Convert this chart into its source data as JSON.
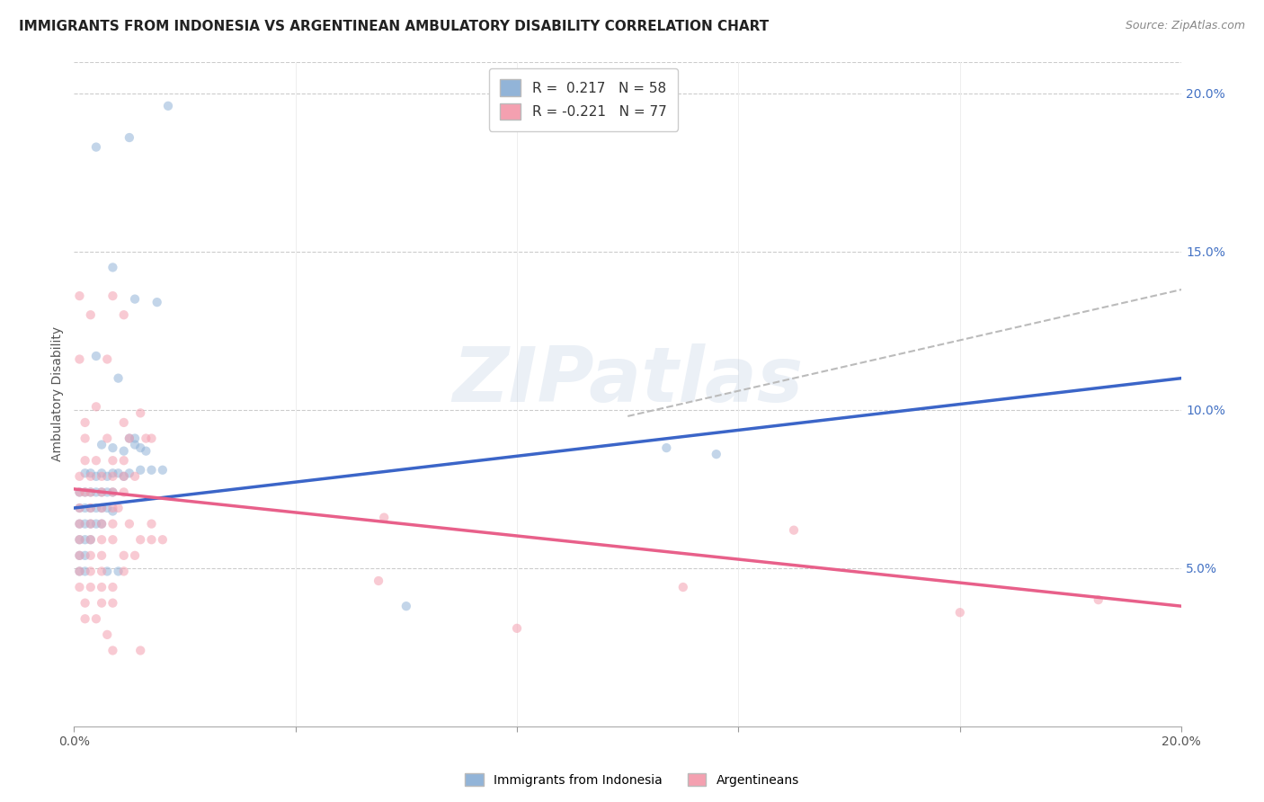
{
  "title": "IMMIGRANTS FROM INDONESIA VS ARGENTINEAN AMBULATORY DISABILITY CORRELATION CHART",
  "source": "Source: ZipAtlas.com",
  "ylabel": "Ambulatory Disability",
  "xlim": [
    0.0,
    0.2
  ],
  "ylim": [
    0.0,
    0.21
  ],
  "x_ticks": [
    0.0,
    0.04,
    0.08,
    0.12,
    0.16,
    0.2
  ],
  "y_ticks_right": [
    0.05,
    0.1,
    0.15,
    0.2
  ],
  "y_tick_labels_right": [
    "5.0%",
    "10.0%",
    "15.0%",
    "20.0%"
  ],
  "blue_color": "#92B4D8",
  "pink_color": "#F4A0B0",
  "blue_line_color": "#3B65C8",
  "pink_line_color": "#E8608A",
  "dashed_line_color": "#BBBBBB",
  "watermark": "ZIPatlas",
  "blue_scatter": [
    [
      0.004,
      0.183
    ],
    [
      0.01,
      0.186
    ],
    [
      0.017,
      0.196
    ],
    [
      0.007,
      0.145
    ],
    [
      0.011,
      0.135
    ],
    [
      0.015,
      0.134
    ],
    [
      0.004,
      0.117
    ],
    [
      0.008,
      0.11
    ],
    [
      0.005,
      0.089
    ],
    [
      0.007,
      0.088
    ],
    [
      0.009,
      0.087
    ],
    [
      0.011,
      0.089
    ],
    [
      0.012,
      0.088
    ],
    [
      0.013,
      0.087
    ],
    [
      0.002,
      0.08
    ],
    [
      0.003,
      0.08
    ],
    [
      0.004,
      0.079
    ],
    [
      0.005,
      0.08
    ],
    [
      0.006,
      0.079
    ],
    [
      0.007,
      0.08
    ],
    [
      0.008,
      0.08
    ],
    [
      0.009,
      0.079
    ],
    [
      0.01,
      0.08
    ],
    [
      0.001,
      0.074
    ],
    [
      0.002,
      0.074
    ],
    [
      0.003,
      0.074
    ],
    [
      0.004,
      0.074
    ],
    [
      0.005,
      0.074
    ],
    [
      0.006,
      0.074
    ],
    [
      0.007,
      0.074
    ],
    [
      0.001,
      0.069
    ],
    [
      0.002,
      0.069
    ],
    [
      0.003,
      0.069
    ],
    [
      0.004,
      0.069
    ],
    [
      0.005,
      0.069
    ],
    [
      0.006,
      0.069
    ],
    [
      0.007,
      0.068
    ],
    [
      0.001,
      0.064
    ],
    [
      0.002,
      0.064
    ],
    [
      0.003,
      0.064
    ],
    [
      0.004,
      0.064
    ],
    [
      0.005,
      0.064
    ],
    [
      0.001,
      0.059
    ],
    [
      0.002,
      0.059
    ],
    [
      0.003,
      0.059
    ],
    [
      0.001,
      0.054
    ],
    [
      0.002,
      0.054
    ],
    [
      0.001,
      0.049
    ],
    [
      0.002,
      0.049
    ],
    [
      0.006,
      0.049
    ],
    [
      0.008,
      0.049
    ],
    [
      0.01,
      0.091
    ],
    [
      0.011,
      0.091
    ],
    [
      0.012,
      0.081
    ],
    [
      0.014,
      0.081
    ],
    [
      0.016,
      0.081
    ],
    [
      0.107,
      0.088
    ],
    [
      0.116,
      0.086
    ],
    [
      0.06,
      0.038
    ]
  ],
  "pink_scatter": [
    [
      0.001,
      0.136
    ],
    [
      0.007,
      0.136
    ],
    [
      0.003,
      0.13
    ],
    [
      0.009,
      0.13
    ],
    [
      0.001,
      0.116
    ],
    [
      0.006,
      0.116
    ],
    [
      0.004,
      0.101
    ],
    [
      0.012,
      0.099
    ],
    [
      0.002,
      0.096
    ],
    [
      0.009,
      0.096
    ],
    [
      0.002,
      0.091
    ],
    [
      0.006,
      0.091
    ],
    [
      0.01,
      0.091
    ],
    [
      0.013,
      0.091
    ],
    [
      0.014,
      0.091
    ],
    [
      0.002,
      0.084
    ],
    [
      0.004,
      0.084
    ],
    [
      0.007,
      0.084
    ],
    [
      0.009,
      0.084
    ],
    [
      0.001,
      0.079
    ],
    [
      0.003,
      0.079
    ],
    [
      0.005,
      0.079
    ],
    [
      0.007,
      0.079
    ],
    [
      0.009,
      0.079
    ],
    [
      0.011,
      0.079
    ],
    [
      0.001,
      0.074
    ],
    [
      0.002,
      0.074
    ],
    [
      0.003,
      0.074
    ],
    [
      0.005,
      0.074
    ],
    [
      0.007,
      0.074
    ],
    [
      0.009,
      0.074
    ],
    [
      0.001,
      0.069
    ],
    [
      0.003,
      0.069
    ],
    [
      0.005,
      0.069
    ],
    [
      0.007,
      0.069
    ],
    [
      0.008,
      0.069
    ],
    [
      0.001,
      0.064
    ],
    [
      0.003,
      0.064
    ],
    [
      0.005,
      0.064
    ],
    [
      0.007,
      0.064
    ],
    [
      0.01,
      0.064
    ],
    [
      0.014,
      0.064
    ],
    [
      0.001,
      0.059
    ],
    [
      0.003,
      0.059
    ],
    [
      0.005,
      0.059
    ],
    [
      0.007,
      0.059
    ],
    [
      0.012,
      0.059
    ],
    [
      0.014,
      0.059
    ],
    [
      0.016,
      0.059
    ],
    [
      0.001,
      0.054
    ],
    [
      0.003,
      0.054
    ],
    [
      0.005,
      0.054
    ],
    [
      0.009,
      0.054
    ],
    [
      0.011,
      0.054
    ],
    [
      0.001,
      0.049
    ],
    [
      0.003,
      0.049
    ],
    [
      0.005,
      0.049
    ],
    [
      0.009,
      0.049
    ],
    [
      0.001,
      0.044
    ],
    [
      0.003,
      0.044
    ],
    [
      0.005,
      0.044
    ],
    [
      0.007,
      0.044
    ],
    [
      0.002,
      0.039
    ],
    [
      0.005,
      0.039
    ],
    [
      0.007,
      0.039
    ],
    [
      0.002,
      0.034
    ],
    [
      0.004,
      0.034
    ],
    [
      0.006,
      0.029
    ],
    [
      0.007,
      0.024
    ],
    [
      0.012,
      0.024
    ],
    [
      0.055,
      0.046
    ],
    [
      0.056,
      0.066
    ],
    [
      0.08,
      0.031
    ],
    [
      0.13,
      0.062
    ],
    [
      0.11,
      0.044
    ],
    [
      0.16,
      0.036
    ],
    [
      0.185,
      0.04
    ]
  ],
  "blue_line": {
    "x0": 0.0,
    "y0": 0.069,
    "x1": 0.2,
    "y1": 0.11
  },
  "pink_line": {
    "x0": 0.0,
    "y0": 0.075,
    "x1": 0.2,
    "y1": 0.038
  },
  "dashed_line": {
    "x0": 0.1,
    "y0": 0.098,
    "x1": 0.2,
    "y1": 0.138
  },
  "title_fontsize": 11,
  "axis_label_fontsize": 10,
  "tick_fontsize": 10,
  "legend_fontsize": 11,
  "marker_size": 55,
  "marker_alpha": 0.55
}
